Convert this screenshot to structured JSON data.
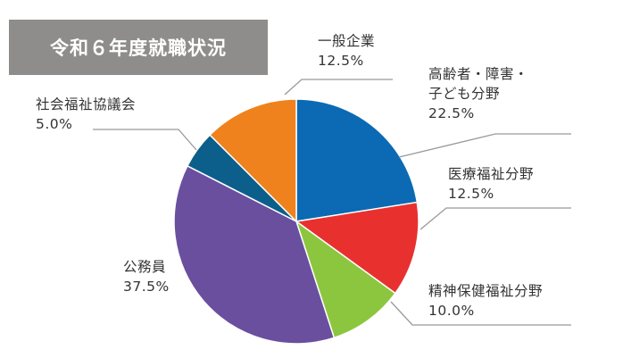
{
  "chart_data": {
    "type": "pie",
    "title": "令和６年度就職状況",
    "start_angle_deg": 0,
    "direction": "clockwise",
    "slices": [
      {
        "label": [
          "高齢者・障害・",
          "子ども分野"
        ],
        "value_label": "22.5%",
        "value": 22.5,
        "color": "#0b6ab3"
      },
      {
        "label": [
          "医療福祉分野"
        ],
        "value_label": "12.5%",
        "value": 12.5,
        "color": "#e8312f"
      },
      {
        "label": [
          "精神保健福祉分野"
        ],
        "value_label": "10.0%",
        "value": 10.0,
        "color": "#8cc63e"
      },
      {
        "label": [
          "公務員"
        ],
        "value_label": "37.5%",
        "value": 37.5,
        "color": "#6a4f9f"
      },
      {
        "label": [
          "社会福祉協議会"
        ],
        "value_label": "5.0%",
        "value": 5.0,
        "color": "#0c5f8a"
      },
      {
        "label": [
          "一般企業"
        ],
        "value_label": "12.5%",
        "value": 12.5,
        "color": "#f0821e"
      }
    ],
    "title_box_color": "#8e8d8c"
  }
}
